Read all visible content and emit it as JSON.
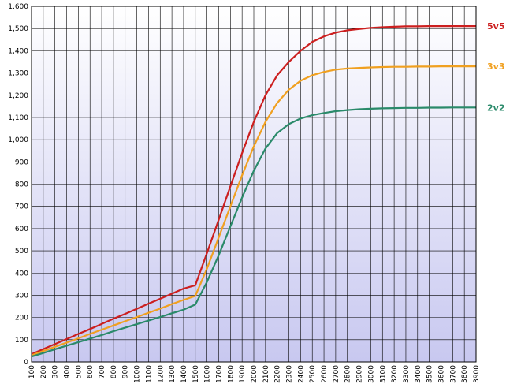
{
  "chart_data": {
    "type": "line",
    "title": "",
    "xlabel": "",
    "ylabel": "",
    "x": [
      100,
      200,
      300,
      400,
      500,
      600,
      700,
      800,
      900,
      1000,
      1100,
      1200,
      1300,
      1400,
      1500,
      1600,
      1700,
      1800,
      1900,
      2000,
      2100,
      2200,
      2300,
      2400,
      2500,
      2600,
      2700,
      2800,
      2900,
      3000,
      3100,
      3200,
      3300,
      3400,
      3500,
      3600,
      3700,
      3800,
      3900
    ],
    "xlim": [
      100,
      3900
    ],
    "ylim": [
      0,
      1600
    ],
    "yticks": [
      0,
      100,
      200,
      300,
      400,
      500,
      600,
      700,
      800,
      900,
      1000,
      1100,
      1200,
      1300,
      1400,
      1500,
      1600
    ],
    "ytick_labels": [
      "0",
      "100",
      "200",
      "300",
      "400",
      "500",
      "600",
      "700",
      "800",
      "900",
      "1,000",
      "1,100",
      "1,200",
      "1,300",
      "1,400",
      "1,500",
      "1,600"
    ],
    "xtick_labels": [
      "100",
      "200",
      "300",
      "400",
      "500",
      "600",
      "700",
      "800",
      "900",
      "1000",
      "1100",
      "1200",
      "1300",
      "1400",
      "1500",
      "1600",
      "1700",
      "1800",
      "1900",
      "2000",
      "2100",
      "2200",
      "2300",
      "2400",
      "2500",
      "2600",
      "2700",
      "2800",
      "2900",
      "3000",
      "3100",
      "3200",
      "3300",
      "3400",
      "3500",
      "3600",
      "3700",
      "3800",
      "3900"
    ],
    "grid": true,
    "legend_position": "right, at line ends",
    "background_gradient": [
      "#ffffff",
      "#c8c8f0"
    ],
    "series": [
      {
        "name": "5v5",
        "color": "#cc1f1f",
        "values": [
          35,
          58,
          80,
          103,
          126,
          148,
          171,
          194,
          216,
          239,
          262,
          284,
          307,
          330,
          345,
          490,
          640,
          790,
          940,
          1080,
          1200,
          1290,
          1350,
          1400,
          1440,
          1465,
          1482,
          1492,
          1498,
          1503,
          1506,
          1508,
          1510,
          1510,
          1511,
          1511,
          1511,
          1511,
          1511
        ]
      },
      {
        "name": "3v3",
        "color": "#f0a020",
        "values": [
          30,
          49,
          68,
          87,
          106,
          126,
          145,
          164,
          183,
          202,
          221,
          240,
          260,
          279,
          297,
          420,
          560,
          700,
          840,
          970,
          1080,
          1165,
          1225,
          1265,
          1290,
          1305,
          1315,
          1320,
          1323,
          1325,
          1327,
          1328,
          1328,
          1329,
          1329,
          1330,
          1330,
          1330,
          1330
        ]
      },
      {
        "name": "2v2",
        "color": "#2a8a6a",
        "values": [
          24,
          40,
          57,
          73,
          89,
          105,
          121,
          138,
          154,
          170,
          186,
          202,
          219,
          235,
          258,
          360,
          480,
          610,
          740,
          860,
          960,
          1030,
          1070,
          1095,
          1110,
          1120,
          1128,
          1133,
          1137,
          1139,
          1141,
          1142,
          1143,
          1143,
          1144,
          1144,
          1145,
          1145,
          1145
        ]
      }
    ]
  }
}
